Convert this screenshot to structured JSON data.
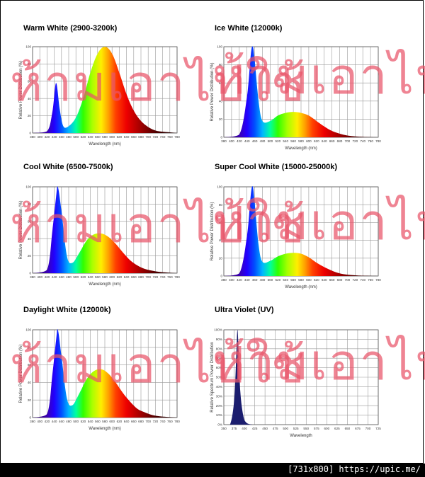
{
  "footer": {
    "text": "[731x800] https://upic.me/"
  },
  "watermark": {
    "text": "ห้ามเอาไปใช้",
    "color": "#e9546a"
  },
  "chart_data": [
    {
      "type": "area",
      "title": "Warm White (2900-3200k)",
      "xlabel": "Wavelength (nm)",
      "ylabel": "Relative Power Distribution (%)",
      "xlim": [
        380,
        780
      ],
      "ylim": [
        0,
        100
      ],
      "xticks": [
        380,
        400,
        420,
        440,
        460,
        480,
        500,
        520,
        540,
        560,
        580,
        600,
        620,
        640,
        660,
        680,
        700,
        720,
        740,
        760,
        780
      ],
      "yticks": [
        0,
        20,
        40,
        60,
        80,
        100
      ],
      "ytick_suffix": "",
      "grid": true,
      "fill": "spectrum",
      "x": [
        380,
        420,
        435,
        445,
        455,
        465,
        480,
        500,
        520,
        540,
        560,
        580,
        600,
        620,
        640,
        660,
        680,
        700,
        720,
        740,
        760,
        780
      ],
      "y": [
        0,
        2,
        25,
        58,
        28,
        8,
        8,
        18,
        40,
        70,
        92,
        100,
        92,
        70,
        45,
        26,
        14,
        7,
        3,
        1.5,
        0.8,
        0
      ]
    },
    {
      "type": "area",
      "title": "Ice White (12000k)",
      "xlabel": "Wavelength (nm)",
      "ylabel": "Relative Power Distribution (%)",
      "xlim": [
        380,
        780
      ],
      "ylim": [
        0,
        100
      ],
      "xticks": [
        380,
        400,
        420,
        440,
        460,
        480,
        500,
        520,
        540,
        560,
        580,
        600,
        620,
        640,
        660,
        680,
        700,
        720,
        740,
        760,
        780
      ],
      "yticks": [
        0,
        20,
        40,
        60,
        80,
        100
      ],
      "ytick_suffix": "",
      "grid": true,
      "fill": "spectrum",
      "x": [
        380,
        420,
        440,
        450,
        455,
        460,
        470,
        480,
        500,
        520,
        540,
        560,
        580,
        600,
        620,
        640,
        660,
        680,
        700,
        720,
        740,
        780
      ],
      "y": [
        0,
        3,
        45,
        92,
        100,
        85,
        40,
        18,
        18,
        24,
        27,
        28,
        27,
        24,
        18,
        12,
        7,
        4,
        2,
        1,
        0.5,
        0
      ]
    },
    {
      "type": "area",
      "title": "Cool White (6500-7500k)",
      "xlabel": "Wavelength (nm)",
      "ylabel": "Relative Power Distribution (%)",
      "xlim": [
        380,
        780
      ],
      "ylim": [
        0,
        100
      ],
      "xticks": [
        380,
        400,
        420,
        440,
        460,
        480,
        500,
        520,
        540,
        560,
        580,
        600,
        620,
        640,
        660,
        680,
        700,
        720,
        740,
        760,
        780
      ],
      "yticks": [
        0,
        20,
        40,
        60,
        80,
        100
      ],
      "ytick_suffix": "",
      "grid": true,
      "fill": "spectrum",
      "x": [
        380,
        420,
        435,
        445,
        450,
        460,
        475,
        490,
        510,
        530,
        550,
        570,
        590,
        610,
        630,
        650,
        670,
        690,
        710,
        730,
        750,
        780
      ],
      "y": [
        0,
        4,
        50,
        88,
        100,
        72,
        20,
        12,
        24,
        38,
        45,
        46,
        42,
        34,
        24,
        15,
        9,
        5,
        3,
        1.5,
        0.8,
        0
      ]
    },
    {
      "type": "area",
      "title": "Super Cool White (15000-25000k)",
      "xlabel": "Wavelength (nm)",
      "ylabel": "Relative Power Distribution (%)",
      "xlim": [
        380,
        780
      ],
      "ylim": [
        0,
        100
      ],
      "xticks": [
        380,
        400,
        420,
        440,
        460,
        480,
        500,
        520,
        540,
        560,
        580,
        600,
        620,
        640,
        660,
        680,
        700,
        720,
        740,
        760,
        780
      ],
      "yticks": [
        0,
        20,
        40,
        60,
        80,
        100
      ],
      "ytick_suffix": "",
      "grid": true,
      "fill": "spectrum",
      "x": [
        380,
        420,
        440,
        450,
        455,
        460,
        470,
        480,
        500,
        520,
        540,
        560,
        580,
        600,
        620,
        640,
        660,
        680,
        700,
        720,
        740,
        780
      ],
      "y": [
        0,
        3,
        45,
        92,
        100,
        82,
        35,
        16,
        17,
        22,
        25,
        26,
        25,
        21,
        15,
        10,
        6,
        3,
        1.5,
        0.8,
        0.4,
        0
      ]
    },
    {
      "type": "area",
      "title": "Daylight White (12000k)",
      "xlabel": "Wavelength (nm)",
      "ylabel": "Relative Power Distribution (%)",
      "xlim": [
        380,
        780
      ],
      "ylim": [
        0,
        100
      ],
      "xticks": [
        380,
        400,
        420,
        440,
        460,
        480,
        500,
        520,
        540,
        560,
        580,
        600,
        620,
        640,
        660,
        680,
        700,
        720,
        740,
        760,
        780
      ],
      "yticks": [
        0,
        20,
        40,
        60,
        80,
        100
      ],
      "ytick_suffix": "",
      "grid": true,
      "fill": "spectrum",
      "x": [
        380,
        420,
        435,
        445,
        450,
        460,
        475,
        490,
        510,
        530,
        550,
        570,
        590,
        610,
        630,
        650,
        670,
        690,
        710,
        730,
        750,
        780
      ],
      "y": [
        0,
        4,
        50,
        88,
        100,
        70,
        22,
        14,
        28,
        44,
        53,
        55,
        50,
        40,
        28,
        18,
        10,
        6,
        3,
        1.5,
        0.8,
        0
      ]
    },
    {
      "type": "area",
      "title": "Ultra Violet (UV)",
      "xlabel": "Wavelength",
      "ylabel": "Relative Spectrum Power Distribution",
      "xlim": [
        350,
        725
      ],
      "ylim": [
        0,
        100
      ],
      "xticks": [
        350,
        375,
        400,
        425,
        450,
        475,
        500,
        525,
        550,
        575,
        600,
        625,
        650,
        675,
        700,
        725
      ],
      "yticks": [
        0,
        10,
        20,
        30,
        40,
        50,
        60,
        70,
        80,
        90,
        100
      ],
      "ytick_suffix": "%",
      "grid": true,
      "fill": "#1b1d6e",
      "x": [
        350,
        365,
        375,
        380,
        383,
        386,
        390,
        397,
        405,
        420
      ],
      "y": [
        0,
        0,
        25,
        70,
        100,
        78,
        35,
        10,
        2,
        0
      ]
    }
  ]
}
